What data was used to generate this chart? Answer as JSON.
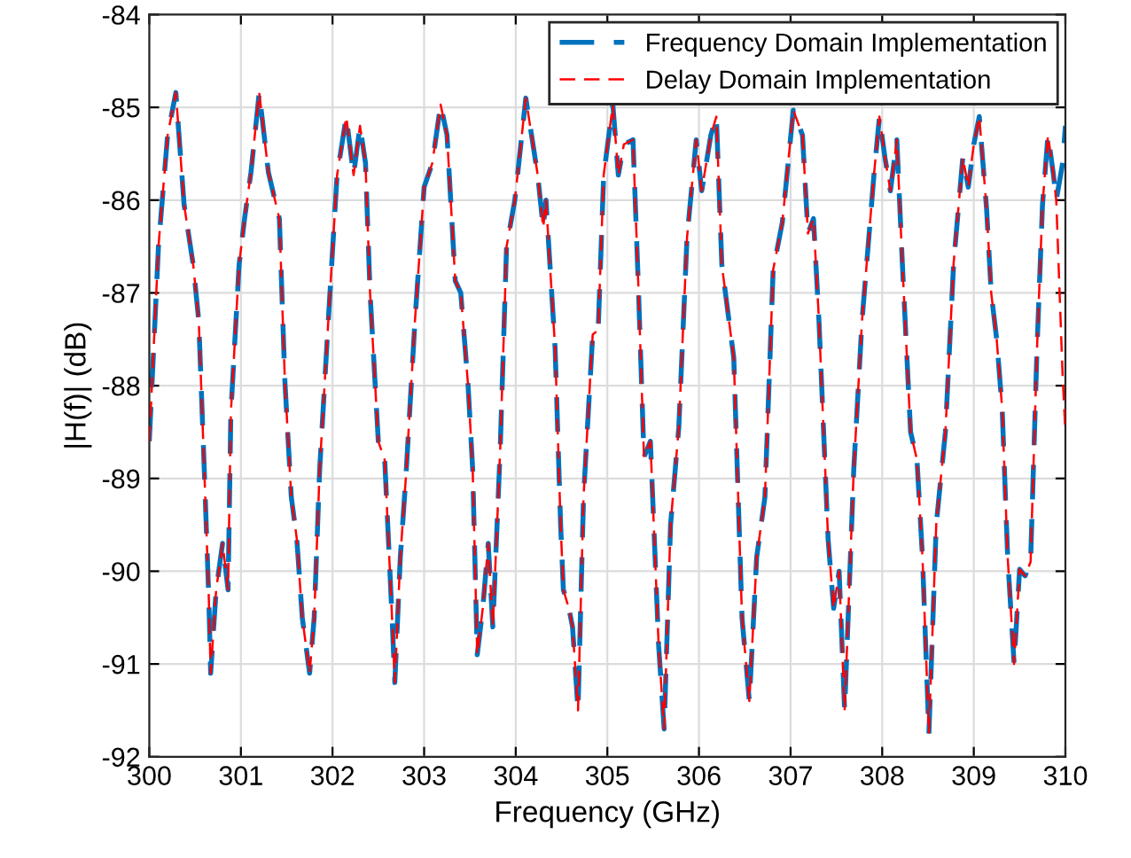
{
  "chart_data": {
    "type": "line",
    "xlabel": "Frequency (GHz)",
    "ylabel": "|H(f)| (dB)",
    "x": [
      300.0,
      300.1,
      300.2,
      300.29,
      300.38,
      300.48,
      300.54,
      300.6,
      300.65,
      300.67,
      300.73,
      300.8,
      300.86,
      300.89,
      300.98,
      301.04,
      301.11,
      301.2,
      301.3,
      301.42,
      301.48,
      301.55,
      301.61,
      301.67,
      301.75,
      301.8,
      301.86,
      301.96,
      302.05,
      302.15,
      302.23,
      302.3,
      302.36,
      302.41,
      302.5,
      302.57,
      302.65,
      302.68,
      302.74,
      302.8,
      302.9,
      303.0,
      303.09,
      303.18,
      303.25,
      303.34,
      303.4,
      303.48,
      303.53,
      303.58,
      303.64,
      303.7,
      303.75,
      303.83,
      303.9,
      303.99,
      304.11,
      304.24,
      304.3,
      304.33,
      304.43,
      304.49,
      304.52,
      304.58,
      304.62,
      304.68,
      304.74,
      304.84,
      304.9,
      304.96,
      305.06,
      305.12,
      305.18,
      305.28,
      305.34,
      305.4,
      305.47,
      305.56,
      305.62,
      305.69,
      305.78,
      305.87,
      305.97,
      306.03,
      306.13,
      306.19,
      306.25,
      306.38,
      306.47,
      306.55,
      306.63,
      306.72,
      306.81,
      306.91,
      307.03,
      307.13,
      307.19,
      307.25,
      307.31,
      307.41,
      307.47,
      307.53,
      307.59,
      307.69,
      307.78,
      307.91,
      307.97,
      308.03,
      308.09,
      308.16,
      308.22,
      308.31,
      308.38,
      308.44,
      308.51,
      308.59,
      308.69,
      308.78,
      308.88,
      308.94,
      309.0,
      309.06,
      309.14,
      309.19,
      309.25,
      309.31,
      309.37,
      309.44,
      309.5,
      309.56,
      309.62,
      309.69,
      309.75,
      309.81,
      309.87,
      309.9,
      309.97,
      310.0
    ],
    "series": [
      {
        "name": "Frequency Domain Implementation",
        "color": "#0072bd",
        "values": [
          -88.6,
          -86.5,
          -85.3,
          -84.84,
          -86.05,
          -86.7,
          -87.3,
          -88.9,
          -90.3,
          -91.1,
          -90.2,
          -89.7,
          -90.2,
          -88.3,
          -86.7,
          -86.2,
          -85.7,
          -84.84,
          -85.7,
          -86.2,
          -87.95,
          -89.2,
          -89.65,
          -90.5,
          -91.1,
          -90.5,
          -88.9,
          -87.2,
          -85.73,
          -85.1,
          -85.73,
          -85.2,
          -85.6,
          -87.0,
          -88.6,
          -88.8,
          -90.5,
          -91.2,
          -89.85,
          -89.0,
          -87.3,
          -85.86,
          -85.6,
          -84.97,
          -85.3,
          -86.87,
          -87.0,
          -88.0,
          -88.9,
          -90.9,
          -90.4,
          -89.7,
          -90.6,
          -88.7,
          -86.5,
          -86.0,
          -84.9,
          -85.73,
          -86.3,
          -86.0,
          -87.6,
          -89.5,
          -90.2,
          -90.4,
          -90.6,
          -91.5,
          -89.2,
          -87.45,
          -87.4,
          -85.73,
          -84.97,
          -85.73,
          -85.4,
          -85.35,
          -86.97,
          -88.77,
          -88.6,
          -90.8,
          -91.7,
          -89.5,
          -88.45,
          -86.4,
          -85.35,
          -85.9,
          -85.3,
          -85.1,
          -86.7,
          -87.7,
          -90.5,
          -91.4,
          -89.85,
          -89.2,
          -86.75,
          -86.24,
          -85.03,
          -85.3,
          -86.36,
          -86.2,
          -87.3,
          -89.66,
          -90.4,
          -90.0,
          -91.5,
          -88.9,
          -87.3,
          -85.73,
          -85.1,
          -85.54,
          -85.9,
          -85.35,
          -86.68,
          -88.5,
          -88.8,
          -89.85,
          -91.75,
          -89.5,
          -88.5,
          -86.68,
          -85.54,
          -85.86,
          -85.4,
          -85.1,
          -86.1,
          -87.0,
          -87.5,
          -88.25,
          -89.85,
          -91.0,
          -89.98,
          -90.05,
          -89.9,
          -87.6,
          -86.05,
          -85.3,
          -85.73,
          -86.0,
          -85.6,
          -85.2
        ]
      },
      {
        "name": "Delay Domain Implementation",
        "color": "#ff0000",
        "values": [
          -88.6,
          -86.5,
          -85.3,
          -84.84,
          -86.05,
          -86.7,
          -87.3,
          -88.9,
          -90.3,
          -91.1,
          -90.2,
          -89.7,
          -90.2,
          -88.3,
          -86.7,
          -86.2,
          -85.7,
          -84.84,
          -85.7,
          -86.2,
          -87.95,
          -89.2,
          -89.65,
          -90.5,
          -91.1,
          -90.5,
          -88.9,
          -87.2,
          -85.73,
          -85.1,
          -85.73,
          -85.2,
          -85.6,
          -87.0,
          -88.6,
          -88.8,
          -90.5,
          -91.2,
          -89.85,
          -89.0,
          -87.3,
          -85.86,
          -85.6,
          -84.97,
          -85.3,
          -86.87,
          -87.0,
          -88.0,
          -88.9,
          -90.9,
          -90.4,
          -89.7,
          -90.6,
          -88.7,
          -86.5,
          -86.0,
          -84.9,
          -85.73,
          -86.3,
          -86.0,
          -87.6,
          -89.5,
          -90.2,
          -90.4,
          -90.6,
          -91.5,
          -89.2,
          -87.45,
          -87.4,
          -85.73,
          -84.97,
          -85.73,
          -85.4,
          -85.35,
          -86.97,
          -88.77,
          -88.6,
          -90.8,
          -91.7,
          -89.5,
          -88.45,
          -86.4,
          -85.35,
          -85.9,
          -85.3,
          -85.1,
          -86.7,
          -87.7,
          -90.5,
          -91.4,
          -89.85,
          -89.2,
          -86.75,
          -86.24,
          -85.03,
          -85.3,
          -86.36,
          -86.2,
          -87.3,
          -89.66,
          -90.4,
          -90.0,
          -91.5,
          -88.9,
          -87.3,
          -85.73,
          -85.1,
          -85.54,
          -85.9,
          -85.35,
          -86.68,
          -88.5,
          -88.8,
          -89.85,
          -91.75,
          -89.5,
          -88.5,
          -86.68,
          -85.54,
          -85.86,
          -85.4,
          -85.1,
          -86.1,
          -87.0,
          -87.5,
          -88.25,
          -89.85,
          -91.0,
          -89.98,
          -90.05,
          -89.9,
          -87.6,
          -86.05,
          -85.3,
          -85.73,
          -86.0,
          -87.9,
          -88.5
        ]
      }
    ],
    "xlim": [
      300,
      310
    ],
    "xticks": [
      300,
      301,
      302,
      303,
      304,
      305,
      306,
      307,
      308,
      309,
      310
    ],
    "ylim": [
      -92,
      -84
    ],
    "yticks": [
      -92,
      -91,
      -90,
      -89,
      -88,
      -87,
      -86,
      -85,
      -84
    ],
    "grid": true,
    "legend": "top right",
    "marker": "none",
    "line_style": "dashed"
  }
}
